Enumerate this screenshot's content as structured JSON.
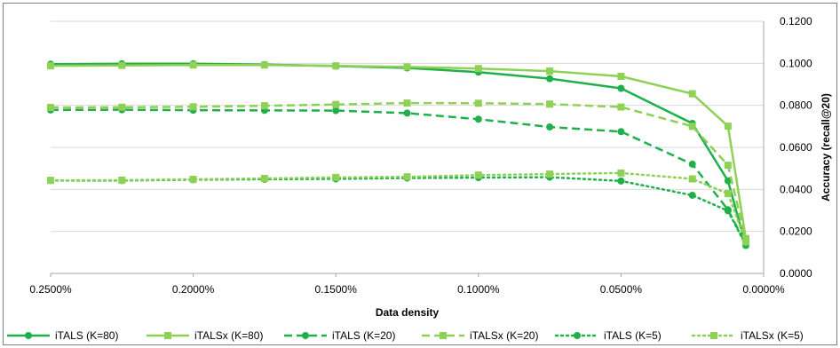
{
  "chart_data": {
    "type": "line",
    "xlabel": "Data density",
    "ylabel": "Accuracy (recall@20)",
    "x": [
      0.0025,
      0.00225,
      0.002,
      0.00175,
      0.0015,
      0.00125,
      0.001,
      0.00075,
      0.0005,
      0.00025,
      0.000125,
      6.25e-05
    ],
    "x_ticks": [
      0.0025,
      0.002,
      0.0015,
      0.001,
      0.0005,
      0.0
    ],
    "x_tick_labels": [
      "0.2500%",
      "0.2000%",
      "0.1500%",
      "0.1000%",
      "0.0500%",
      "0.0000%"
    ],
    "xlim": [
      0.0025,
      0.0
    ],
    "y_ticks": [
      0.0,
      0.02,
      0.04,
      0.06,
      0.08,
      0.1,
      0.12
    ],
    "y_tick_labels": [
      "0.0000",
      "0.0200",
      "0.0400",
      "0.0600",
      "0.0800",
      "0.1000",
      "0.1200"
    ],
    "ylim": [
      0.0,
      0.12
    ],
    "y_axis_side": "right",
    "grid": "horizontal",
    "legend_position": "bottom",
    "series": [
      {
        "name": "iTALS (K=80)",
        "color": "#1fb04b",
        "dash": "solid",
        "marker": "circle",
        "values": [
          0.0996,
          0.0998,
          0.0998,
          0.0994,
          0.0987,
          0.0978,
          0.0958,
          0.0927,
          0.0881,
          0.0714,
          0.0441,
          0.0133
        ]
      },
      {
        "name": "iTALSx (K=80)",
        "color": "#8ed156",
        "dash": "solid",
        "marker": "square",
        "values": [
          0.0988,
          0.099,
          0.0992,
          0.0992,
          0.0988,
          0.0983,
          0.0975,
          0.0963,
          0.0938,
          0.0855,
          0.0701,
          0.0166
        ]
      },
      {
        "name": "iTALS (K=20)",
        "color": "#1fb04b",
        "dash": "dashed",
        "marker": "circle",
        "values": [
          0.0778,
          0.0779,
          0.0777,
          0.0776,
          0.0775,
          0.0763,
          0.0734,
          0.0697,
          0.0675,
          0.052,
          0.0303,
          0.014
        ]
      },
      {
        "name": "iTALSx (K=20)",
        "color": "#8ed156",
        "dash": "dashed",
        "marker": "square",
        "values": [
          0.079,
          0.0791,
          0.0793,
          0.0798,
          0.0804,
          0.0811,
          0.081,
          0.0806,
          0.0792,
          0.07,
          0.0515,
          0.016
        ]
      },
      {
        "name": "iTALS (K=5)",
        "color": "#1fb04b",
        "dash": "dotted",
        "marker": "circle",
        "values": [
          0.0442,
          0.0442,
          0.0446,
          0.0448,
          0.045,
          0.0454,
          0.0456,
          0.0458,
          0.044,
          0.0372,
          0.0298,
          0.0135
        ]
      },
      {
        "name": "iTALSx (K=5)",
        "color": "#8ed156",
        "dash": "dotted",
        "marker": "square",
        "values": [
          0.0443,
          0.0444,
          0.0448,
          0.0452,
          0.0457,
          0.046,
          0.0468,
          0.0473,
          0.0478,
          0.045,
          0.038,
          0.015
        ]
      }
    ]
  }
}
